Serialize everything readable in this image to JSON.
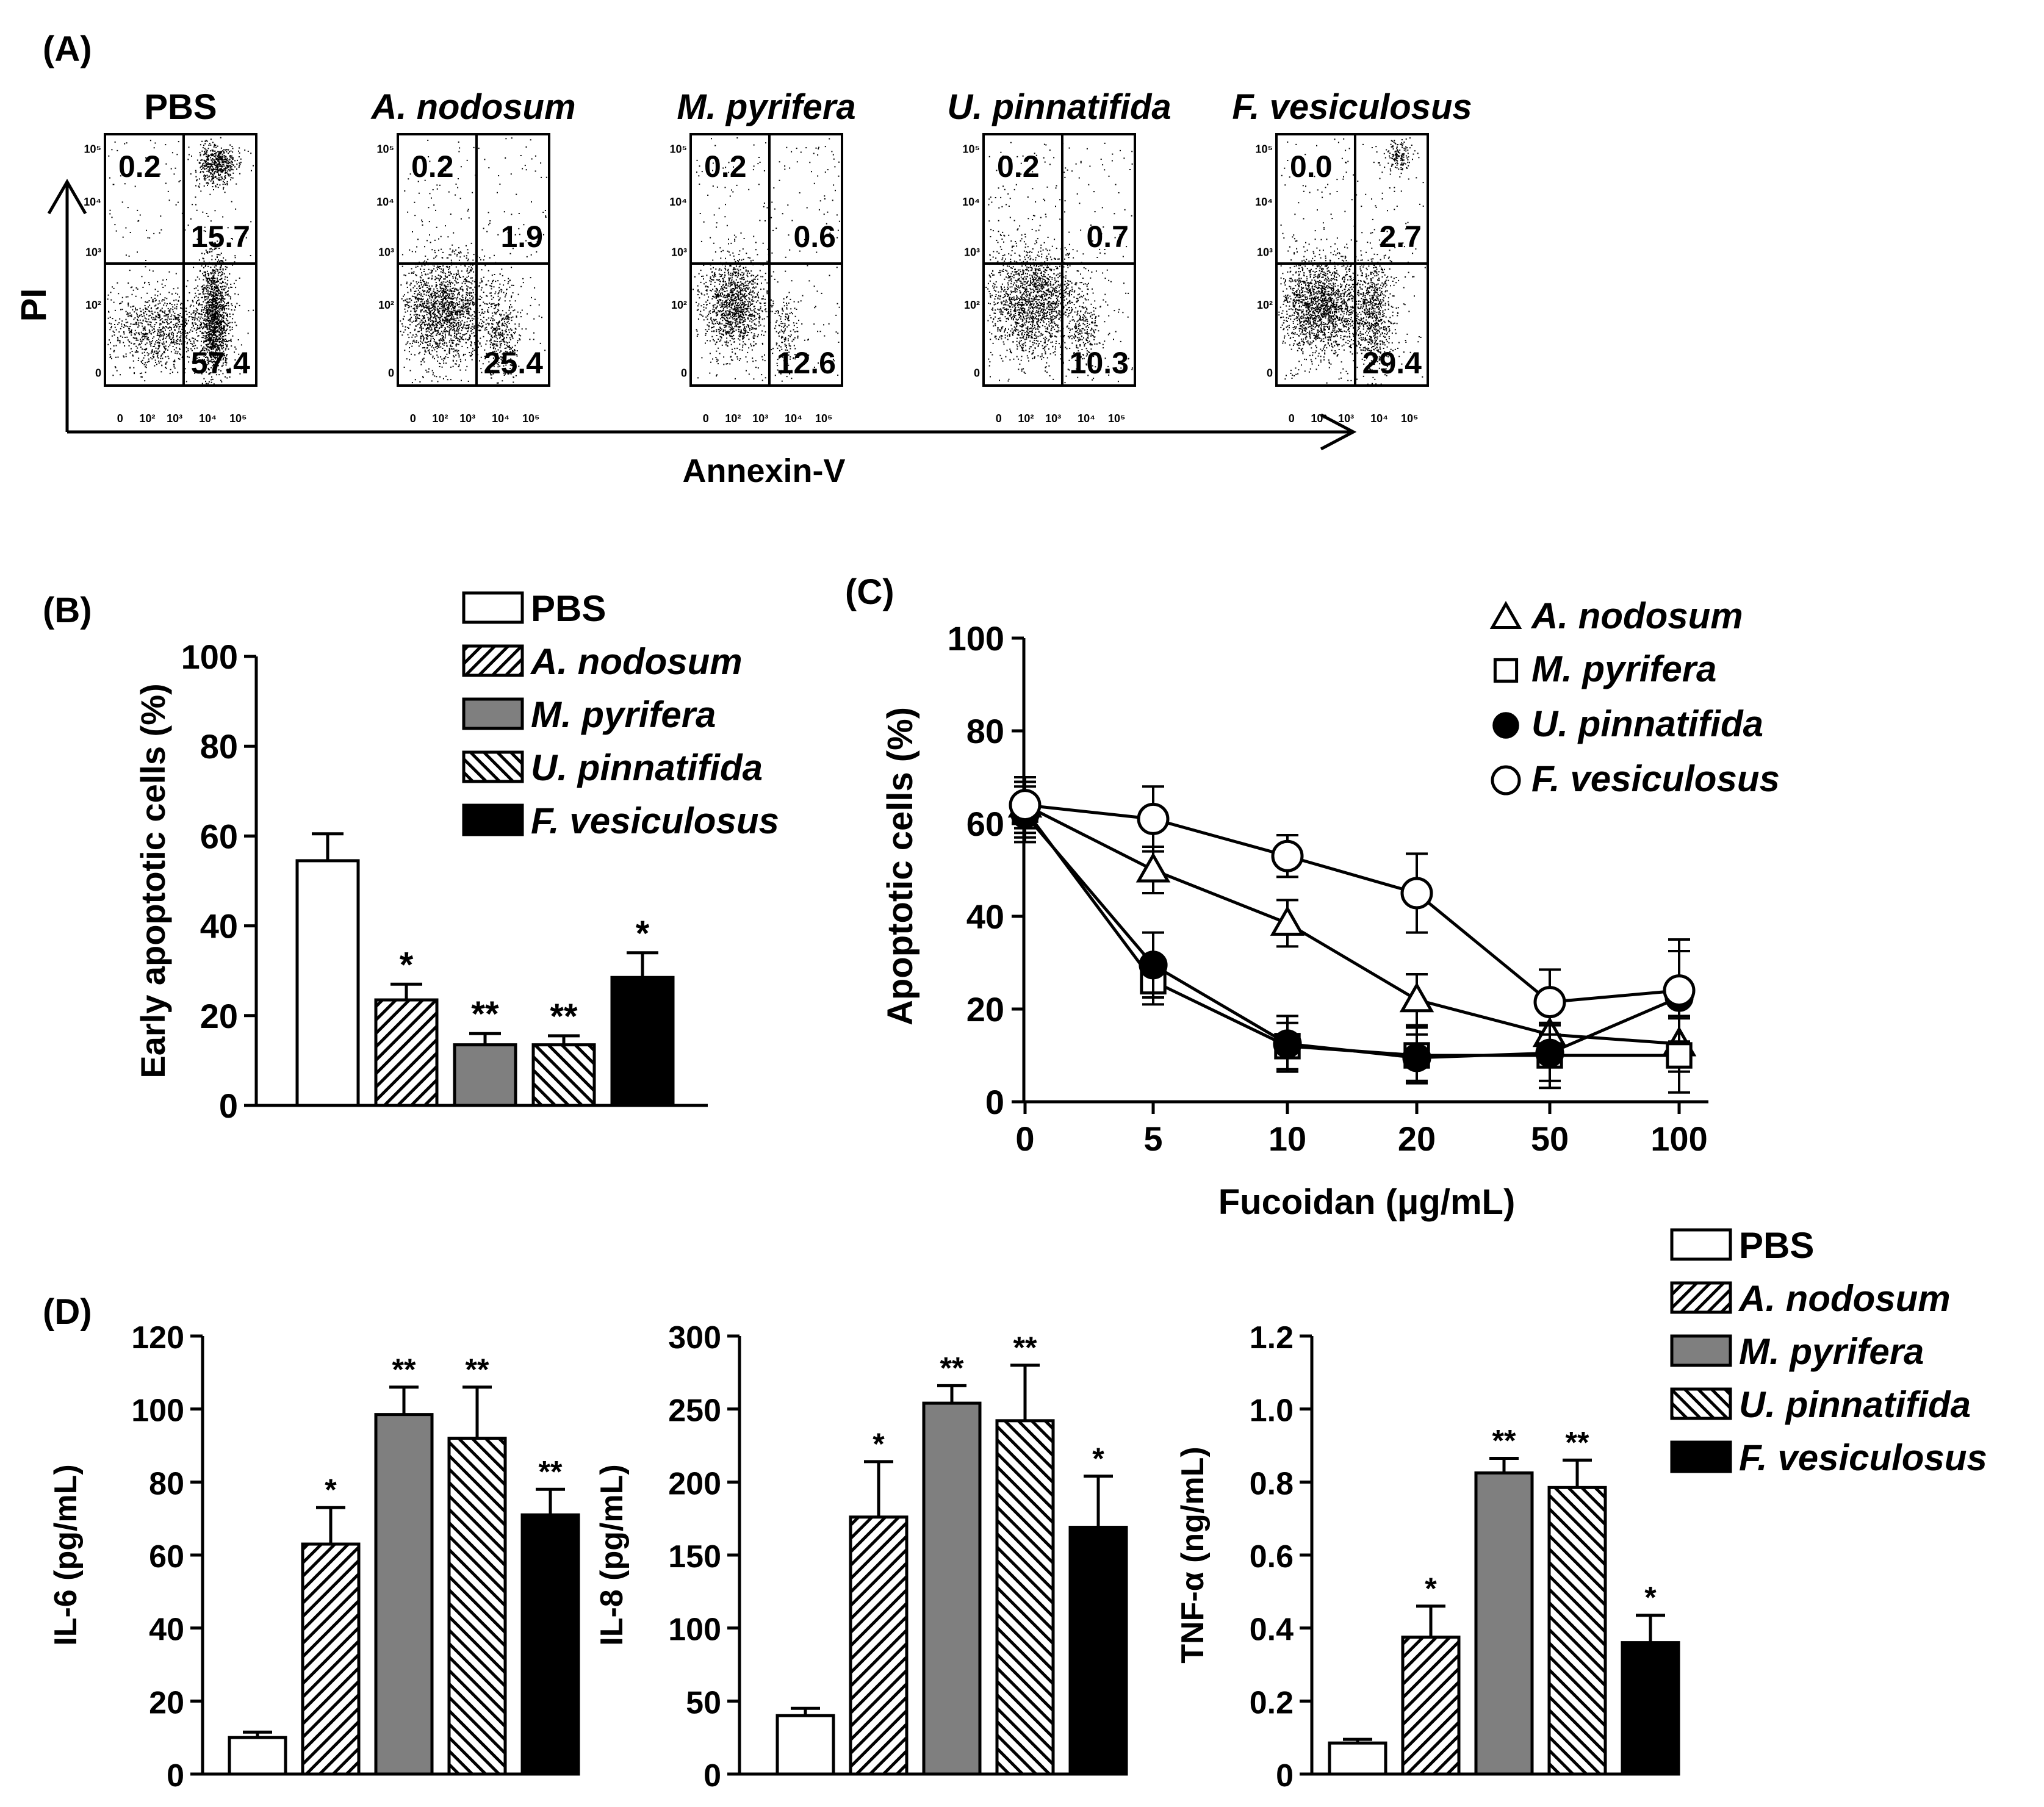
{
  "panel_a": {
    "label": "(A)",
    "x_axis_label": "Annexin-V",
    "y_axis_label": "PI",
    "x_ticks": [
      "0",
      "10²",
      "10³",
      "10⁴",
      "10⁵"
    ],
    "y_ticks": [
      "0",
      "10²",
      "10³",
      "10⁴",
      "10⁵"
    ],
    "plots": [
      {
        "title": "PBS",
        "italic": false,
        "upper_left": "0.2",
        "upper_right": "15.7",
        "lower_right": "57.4"
      },
      {
        "title": "A. nodosum",
        "italic": true,
        "upper_left": "0.2",
        "upper_right": "1.9",
        "lower_right": "25.4"
      },
      {
        "title": "M. pyrifera",
        "italic": true,
        "upper_left": "0.2",
        "upper_right": "0.6",
        "lower_right": "12.6"
      },
      {
        "title": "U. pinnatifida",
        "italic": true,
        "upper_left": "0.2",
        "upper_right": "0.7",
        "lower_right": "10.3"
      },
      {
        "title": "F. vesiculosus",
        "italic": true,
        "upper_left": "0.0",
        "upper_right": "2.7",
        "lower_right": "29.4"
      }
    ]
  },
  "legend_groups": [
    {
      "name": "PBS",
      "italic": false,
      "fill": "white"
    },
    {
      "name": "A. nodosum",
      "italic": true,
      "fill": "hatch-forward"
    },
    {
      "name": "M. pyrifera",
      "italic": true,
      "fill": "gray"
    },
    {
      "name": "U. pinnatifida",
      "italic": true,
      "fill": "hatch-back"
    },
    {
      "name": "F. vesiculosus",
      "italic": true,
      "fill": "black"
    }
  ],
  "colors": {
    "gray": "#7f7f7f",
    "black": "#000000",
    "white": "#ffffff"
  },
  "chart_data": [
    {
      "id": "B",
      "panel_label": "(B)",
      "type": "bar",
      "ylabel": "Early apoptotic cells (%)",
      "xlabel": "",
      "ylim": [
        0,
        100
      ],
      "yticks": [
        0,
        20,
        40,
        60,
        80,
        100
      ],
      "ytick_labels": [
        "0",
        "20",
        "40",
        "60",
        "80",
        "100"
      ],
      "categories": [
        "PBS",
        "A. nodosum",
        "M. pyrifera",
        "U. pinnatifida",
        "F. vesiculosus"
      ],
      "values": [
        54.5,
        23.5,
        13.5,
        13.5,
        28.5
      ],
      "errors": [
        6,
        3.5,
        2.5,
        2,
        5.5
      ],
      "significance": [
        "",
        "*",
        "**",
        "**",
        "*"
      ]
    },
    {
      "id": "C",
      "panel_label": "(C)",
      "type": "line",
      "ylabel": "Apoptotic cells (%)",
      "xlabel": "Fucoidan (μg/mL)",
      "ylim": [
        0,
        100
      ],
      "yticks": [
        0,
        20,
        40,
        60,
        80,
        100
      ],
      "ytick_labels": [
        "0",
        "20",
        "40",
        "60",
        "80",
        "100"
      ],
      "x": [
        "0",
        "5",
        "10",
        "20",
        "50",
        "100"
      ],
      "series": [
        {
          "name": "A. nodosum",
          "marker": "triangle",
          "values": [
            64,
            50,
            38.5,
            22,
            14.5,
            12.5
          ],
          "errors": [
            6,
            5,
            5,
            5.5,
            5,
            6
          ]
        },
        {
          "name": "M. pyrifera",
          "marker": "square",
          "values": [
            63,
            26,
            12,
            10,
            10,
            10
          ],
          "errors": [
            6,
            5,
            5,
            6,
            7,
            8
          ]
        },
        {
          "name": "U. pinnatifida",
          "marker": "filled-circle",
          "values": [
            62,
            29.5,
            12.5,
            9.5,
            10.5,
            22.5
          ],
          "errors": [
            6,
            7,
            6,
            5,
            6,
            10
          ]
        },
        {
          "name": "F. vesiculosus",
          "marker": "open-circle",
          "values": [
            64,
            61,
            53,
            45,
            21.5,
            24
          ],
          "errors": [
            5,
            7,
            4.5,
            8.5,
            7,
            11
          ]
        }
      ]
    },
    {
      "id": "D1",
      "panel_label": "(D)",
      "type": "bar",
      "ylabel": "IL-6  (pg/mL)",
      "xlabel": "",
      "ylim": [
        0,
        120
      ],
      "yticks": [
        0,
        20,
        40,
        60,
        80,
        100,
        120
      ],
      "ytick_labels": [
        "0",
        "20",
        "40",
        "60",
        "80",
        "100",
        "120"
      ],
      "categories": [
        "PBS",
        "A. nodosum",
        "M. pyrifera",
        "U. pinnatifida",
        "F. vesiculosus"
      ],
      "values": [
        10,
        63,
        98.5,
        92,
        71
      ],
      "errors": [
        1.5,
        10,
        7.5,
        14,
        7
      ],
      "significance": [
        "",
        "*",
        "**",
        "**",
        "**"
      ]
    },
    {
      "id": "D2",
      "panel_label": "",
      "type": "bar",
      "ylabel": "IL-8 (pg/mL)",
      "xlabel": "",
      "ylim": [
        0,
        300
      ],
      "yticks": [
        0,
        50,
        100,
        150,
        200,
        250,
        300
      ],
      "ytick_labels": [
        "0",
        "50",
        "100",
        "150",
        "200",
        "250",
        "300"
      ],
      "categories": [
        "PBS",
        "A. nodosum",
        "M. pyrifera",
        "U. pinnatifida",
        "F. vesiculosus"
      ],
      "values": [
        40,
        176,
        254,
        242,
        169
      ],
      "errors": [
        5,
        38,
        12,
        38,
        35
      ],
      "significance": [
        "",
        "*",
        "**",
        "**",
        "*"
      ]
    },
    {
      "id": "D3",
      "panel_label": "",
      "type": "bar",
      "ylabel": "TNF-α (ng/mL)",
      "xlabel": "",
      "ylim": [
        0,
        1.2
      ],
      "yticks": [
        0,
        0.2,
        0.4,
        0.6,
        0.8,
        1.0,
        1.2
      ],
      "ytick_labels": [
        "0",
        "0.2",
        "0.4",
        "0.6",
        "0.8",
        "1.0",
        "1.2"
      ],
      "categories": [
        "PBS",
        "A. nodosum",
        "M. pyrifera",
        "U. pinnatifida",
        "F. vesiculosus"
      ],
      "values": [
        0.085,
        0.375,
        0.825,
        0.785,
        0.36
      ],
      "errors": [
        0.01,
        0.085,
        0.04,
        0.075,
        0.075
      ],
      "significance": [
        "",
        "*",
        "**",
        "**",
        "*"
      ]
    }
  ]
}
